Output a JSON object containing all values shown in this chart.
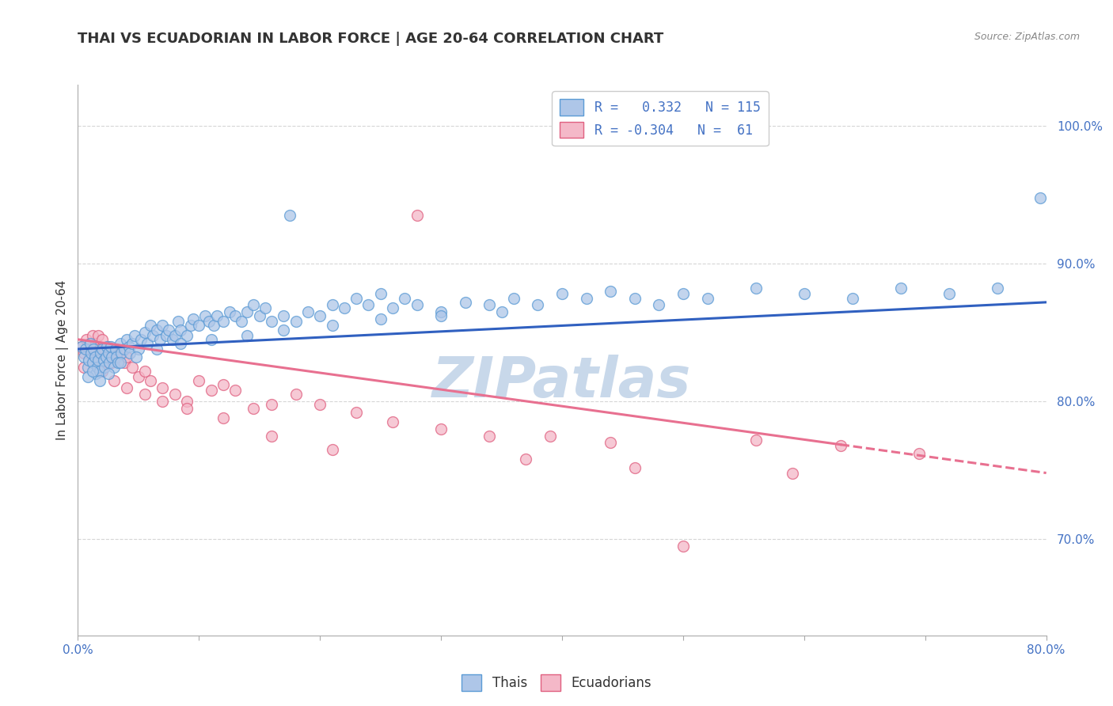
{
  "title": "THAI VS ECUADORIAN IN LABOR FORCE | AGE 20-64 CORRELATION CHART",
  "source": "Source: ZipAtlas.com",
  "ylabel": "In Labor Force | Age 20-64",
  "xlim": [
    0.0,
    0.8
  ],
  "ylim": [
    0.63,
    1.03
  ],
  "xticks": [
    0.0,
    0.1,
    0.2,
    0.3,
    0.4,
    0.5,
    0.6,
    0.7,
    0.8
  ],
  "xticklabels": [
    "0.0%",
    "",
    "",
    "",
    "",
    "",
    "",
    "",
    "80.0%"
  ],
  "ytick_positions": [
    0.7,
    0.8,
    0.9,
    1.0
  ],
  "yticklabels": [
    "70.0%",
    "80.0%",
    "90.0%",
    "100.0%"
  ],
  "thai_color": "#aec6e8",
  "thai_edge": "#5b9bd5",
  "ecuadorian_color": "#f4b8c8",
  "ecuadorian_edge": "#e06080",
  "trend_thai_color": "#3060c0",
  "trend_ecu_color": "#e87090",
  "watermark": "ZIPatlas",
  "thai_R": 0.332,
  "thai_N": 115,
  "ecu_R": -0.304,
  "ecu_N": 61,
  "thai_x": [
    0.003,
    0.005,
    0.006,
    0.008,
    0.009,
    0.01,
    0.011,
    0.012,
    0.013,
    0.014,
    0.015,
    0.016,
    0.017,
    0.018,
    0.019,
    0.02,
    0.021,
    0.022,
    0.023,
    0.024,
    0.025,
    0.026,
    0.027,
    0.028,
    0.03,
    0.031,
    0.032,
    0.033,
    0.035,
    0.036,
    0.038,
    0.04,
    0.042,
    0.043,
    0.045,
    0.047,
    0.05,
    0.052,
    0.055,
    0.057,
    0.06,
    0.062,
    0.065,
    0.068,
    0.07,
    0.073,
    0.075,
    0.078,
    0.08,
    0.083,
    0.085,
    0.09,
    0.093,
    0.095,
    0.1,
    0.105,
    0.108,
    0.112,
    0.115,
    0.12,
    0.125,
    0.13,
    0.135,
    0.14,
    0.145,
    0.15,
    0.155,
    0.16,
    0.17,
    0.175,
    0.18,
    0.19,
    0.2,
    0.21,
    0.22,
    0.23,
    0.24,
    0.25,
    0.26,
    0.27,
    0.28,
    0.3,
    0.32,
    0.34,
    0.36,
    0.38,
    0.4,
    0.42,
    0.44,
    0.46,
    0.48,
    0.5,
    0.52,
    0.56,
    0.6,
    0.64,
    0.68,
    0.72,
    0.76,
    0.795,
    0.008,
    0.012,
    0.018,
    0.025,
    0.035,
    0.048,
    0.065,
    0.085,
    0.11,
    0.14,
    0.17,
    0.21,
    0.25,
    0.3,
    0.35
  ],
  "thai_y": [
    0.84,
    0.832,
    0.838,
    0.825,
    0.83,
    0.842,
    0.835,
    0.828,
    0.838,
    0.832,
    0.82,
    0.825,
    0.83,
    0.822,
    0.835,
    0.838,
    0.83,
    0.825,
    0.832,
    0.84,
    0.835,
    0.828,
    0.84,
    0.832,
    0.825,
    0.838,
    0.832,
    0.828,
    0.842,
    0.835,
    0.838,
    0.845,
    0.84,
    0.835,
    0.842,
    0.848,
    0.838,
    0.845,
    0.85,
    0.842,
    0.855,
    0.848,
    0.852,
    0.845,
    0.855,
    0.848,
    0.852,
    0.845,
    0.848,
    0.858,
    0.852,
    0.848,
    0.855,
    0.86,
    0.855,
    0.862,
    0.858,
    0.855,
    0.862,
    0.858,
    0.865,
    0.862,
    0.858,
    0.865,
    0.87,
    0.862,
    0.868,
    0.858,
    0.862,
    0.935,
    0.858,
    0.865,
    0.862,
    0.87,
    0.868,
    0.875,
    0.87,
    0.878,
    0.868,
    0.875,
    0.87,
    0.865,
    0.872,
    0.87,
    0.875,
    0.87,
    0.878,
    0.875,
    0.88,
    0.875,
    0.87,
    0.878,
    0.875,
    0.882,
    0.878,
    0.875,
    0.882,
    0.878,
    0.882,
    0.948,
    0.818,
    0.822,
    0.815,
    0.82,
    0.828,
    0.832,
    0.838,
    0.842,
    0.845,
    0.848,
    0.852,
    0.855,
    0.86,
    0.862,
    0.865
  ],
  "ecu_x": [
    0.003,
    0.005,
    0.007,
    0.008,
    0.01,
    0.012,
    0.014,
    0.015,
    0.017,
    0.018,
    0.02,
    0.022,
    0.024,
    0.025,
    0.027,
    0.028,
    0.03,
    0.032,
    0.035,
    0.038,
    0.04,
    0.045,
    0.05,
    0.055,
    0.06,
    0.07,
    0.08,
    0.09,
    0.1,
    0.11,
    0.12,
    0.13,
    0.145,
    0.16,
    0.18,
    0.2,
    0.23,
    0.26,
    0.3,
    0.34,
    0.39,
    0.44,
    0.5,
    0.56,
    0.63,
    0.695,
    0.005,
    0.012,
    0.02,
    0.03,
    0.04,
    0.055,
    0.07,
    0.09,
    0.12,
    0.16,
    0.21,
    0.28,
    0.37,
    0.46,
    0.59
  ],
  "ecu_y": [
    0.84,
    0.835,
    0.845,
    0.838,
    0.842,
    0.848,
    0.835,
    0.842,
    0.848,
    0.838,
    0.845,
    0.838,
    0.832,
    0.84,
    0.835,
    0.828,
    0.832,
    0.838,
    0.835,
    0.828,
    0.832,
    0.825,
    0.818,
    0.822,
    0.815,
    0.81,
    0.805,
    0.8,
    0.815,
    0.808,
    0.812,
    0.808,
    0.795,
    0.798,
    0.805,
    0.798,
    0.792,
    0.785,
    0.78,
    0.775,
    0.775,
    0.77,
    0.695,
    0.772,
    0.768,
    0.762,
    0.825,
    0.83,
    0.822,
    0.815,
    0.81,
    0.805,
    0.8,
    0.795,
    0.788,
    0.775,
    0.765,
    0.935,
    0.758,
    0.752,
    0.748
  ],
  "marker_size": 100,
  "alpha": 0.75,
  "title_fontsize": 13,
  "axis_label_fontsize": 11,
  "tick_fontsize": 11,
  "legend_fontsize": 12,
  "watermark_color": "#c8d8ea",
  "watermark_fontsize": 52,
  "background_color": "#ffffff",
  "grid_color": "#cccccc",
  "grid_style": "--",
  "grid_alpha": 0.8,
  "trend_thai_x0": 0.0,
  "trend_thai_x1": 0.8,
  "trend_thai_y0": 0.838,
  "trend_thai_y1": 0.872,
  "trend_ecu_solid_x0": 0.0,
  "trend_ecu_solid_x1": 0.63,
  "trend_ecu_dash_x0": 0.63,
  "trend_ecu_dash_x1": 0.8,
  "trend_ecu_y0": 0.845,
  "trend_ecu_y1": 0.748
}
